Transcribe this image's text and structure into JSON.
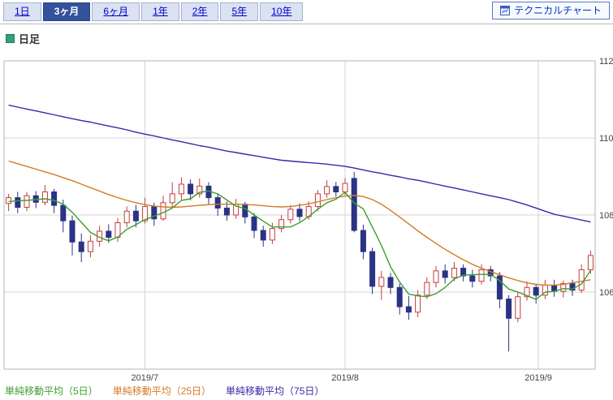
{
  "tabs": {
    "items": [
      {
        "label": "1日",
        "selected": false
      },
      {
        "label": "3ヶ月",
        "selected": true
      },
      {
        "label": "6ヶ月",
        "selected": false
      },
      {
        "label": "1年",
        "selected": false
      },
      {
        "label": "2年",
        "selected": false
      },
      {
        "label": "5年",
        "selected": false
      },
      {
        "label": "10年",
        "selected": false
      }
    ]
  },
  "technical_button": {
    "label": "テクニカルチャート"
  },
  "interval": {
    "label": "日足"
  },
  "chart_data": {
    "type": "candlestick",
    "title": "",
    "xlabel": "",
    "ylabel": "",
    "ylim": [
      104,
      112
    ],
    "y_ticks": [
      112,
      110,
      108,
      106
    ],
    "x_ticks": [
      {
        "label": "2019/7",
        "pos": 0.238
      },
      {
        "label": "2019/8",
        "pos": 0.577
      },
      {
        "label": "2019/9",
        "pos": 0.904
      }
    ],
    "grid": true,
    "legend_position": "bottom-left",
    "ohlc_order": [
      "open",
      "high",
      "low",
      "close"
    ],
    "candles": [
      [
        108.3,
        108.55,
        108.1,
        108.45
      ],
      [
        108.45,
        108.6,
        108.05,
        108.2
      ],
      [
        108.2,
        108.6,
        108.1,
        108.5
      ],
      [
        108.5,
        108.62,
        108.18,
        108.33
      ],
      [
        108.33,
        108.78,
        108.25,
        108.6
      ],
      [
        108.6,
        108.68,
        108.05,
        108.25
      ],
      [
        108.25,
        108.4,
        107.55,
        107.85
      ],
      [
        107.85,
        107.98,
        106.95,
        107.3
      ],
      [
        107.3,
        107.52,
        106.78,
        107.05
      ],
      [
        107.05,
        107.48,
        106.9,
        107.32
      ],
      [
        107.32,
        107.72,
        107.18,
        107.58
      ],
      [
        107.58,
        107.76,
        107.28,
        107.42
      ],
      [
        107.42,
        107.92,
        107.3,
        107.8
      ],
      [
        107.8,
        108.22,
        107.68,
        108.1
      ],
      [
        108.1,
        108.26,
        107.68,
        107.85
      ],
      [
        107.85,
        108.45,
        107.78,
        108.22
      ],
      [
        108.22,
        108.32,
        107.72,
        107.9
      ],
      [
        107.9,
        108.5,
        107.85,
        108.32
      ],
      [
        108.32,
        108.85,
        108.2,
        108.55
      ],
      [
        108.55,
        108.98,
        108.4,
        108.8
      ],
      [
        108.8,
        108.92,
        108.38,
        108.55
      ],
      [
        108.55,
        108.95,
        108.45,
        108.75
      ],
      [
        108.75,
        108.85,
        108.28,
        108.45
      ],
      [
        108.45,
        108.56,
        107.98,
        108.18
      ],
      [
        108.18,
        108.35,
        107.85,
        108.0
      ],
      [
        108.0,
        108.42,
        107.9,
        108.28
      ],
      [
        108.28,
        108.34,
        107.78,
        107.95
      ],
      [
        107.95,
        108.05,
        107.4,
        107.6
      ],
      [
        107.6,
        107.72,
        107.18,
        107.35
      ],
      [
        107.35,
        107.8,
        107.25,
        107.65
      ],
      [
        107.65,
        108.0,
        107.55,
        107.88
      ],
      [
        107.88,
        108.26,
        107.78,
        108.15
      ],
      [
        108.15,
        108.3,
        107.84,
        107.96
      ],
      [
        107.96,
        108.36,
        107.88,
        108.22
      ],
      [
        108.22,
        108.65,
        108.1,
        108.55
      ],
      [
        108.55,
        108.9,
        108.45,
        108.74
      ],
      [
        108.74,
        108.86,
        108.48,
        108.6
      ],
      [
        108.6,
        108.96,
        108.52,
        108.82
      ],
      [
        108.95,
        109.12,
        107.55,
        107.6
      ],
      [
        107.6,
        107.75,
        106.85,
        107.05
      ],
      [
        107.05,
        107.15,
        105.95,
        106.15
      ],
      [
        106.15,
        106.55,
        105.8,
        106.38
      ],
      [
        106.38,
        106.5,
        105.95,
        106.12
      ],
      [
        106.12,
        106.22,
        105.42,
        105.62
      ],
      [
        105.62,
        105.9,
        105.28,
        105.48
      ],
      [
        105.48,
        106.05,
        105.35,
        105.92
      ],
      [
        105.92,
        106.38,
        105.82,
        106.25
      ],
      [
        106.25,
        106.68,
        106.12,
        106.55
      ],
      [
        106.55,
        106.72,
        106.22,
        106.38
      ],
      [
        106.38,
        106.78,
        106.28,
        106.62
      ],
      [
        106.62,
        106.72,
        106.28,
        106.42
      ],
      [
        106.42,
        106.58,
        106.12,
        106.28
      ],
      [
        106.28,
        106.72,
        106.2,
        106.58
      ],
      [
        106.58,
        106.68,
        106.28,
        106.42
      ],
      [
        106.42,
        106.52,
        105.58,
        105.82
      ],
      [
        105.82,
        105.92,
        104.46,
        105.32
      ],
      [
        105.32,
        106.02,
        105.22,
        105.88
      ],
      [
        105.88,
        106.28,
        105.78,
        106.12
      ],
      [
        106.12,
        106.22,
        105.7,
        105.92
      ],
      [
        105.92,
        106.32,
        105.82,
        106.18
      ],
      [
        106.18,
        106.32,
        105.88,
        106.02
      ],
      [
        106.02,
        106.3,
        105.86,
        106.22
      ],
      [
        106.22,
        106.32,
        105.9,
        106.05
      ],
      [
        106.05,
        106.72,
        105.98,
        106.58
      ],
      [
        106.58,
        107.08,
        106.48,
        106.95
      ]
    ],
    "series": [
      {
        "name": "単純移動平均（5日）",
        "color": "#3d9e30",
        "values": [
          108.35,
          108.37,
          108.38,
          108.4,
          108.42,
          108.38,
          108.28,
          108.07,
          107.81,
          107.55,
          107.42,
          107.33,
          107.43,
          107.63,
          107.75,
          107.88,
          107.97,
          108.06,
          108.18,
          108.38,
          108.42,
          108.59,
          108.62,
          108.55,
          108.39,
          108.23,
          108.17,
          108.0,
          107.84,
          107.69,
          107.69,
          107.69,
          107.8,
          107.96,
          108.15,
          108.32,
          108.41,
          108.59,
          108.31,
          108.16,
          107.69,
          107.21,
          106.66,
          106.26,
          105.95,
          105.9,
          105.88,
          105.96,
          106.12,
          106.34,
          106.44,
          106.45,
          106.46,
          106.46,
          106.3,
          106.08,
          106.0,
          105.91,
          105.81,
          106.0,
          106.02,
          106.09,
          106.08,
          106.21,
          106.56
        ]
      },
      {
        "name": "単純移動平均（25日）",
        "color": "#d57b25",
        "values": [
          109.4,
          109.33,
          109.26,
          109.19,
          109.12,
          109.05,
          108.97,
          108.89,
          108.8,
          108.71,
          108.62,
          108.53,
          108.45,
          108.38,
          108.32,
          108.27,
          108.23,
          108.21,
          108.2,
          108.21,
          108.23,
          108.25,
          108.27,
          108.28,
          108.28,
          108.28,
          108.27,
          108.26,
          108.24,
          108.22,
          108.21,
          108.22,
          108.25,
          108.29,
          108.34,
          108.4,
          108.45,
          108.49,
          108.51,
          108.48,
          108.4,
          108.28,
          108.12,
          107.95,
          107.77,
          107.59,
          107.42,
          107.26,
          107.11,
          106.97,
          106.84,
          106.72,
          106.62,
          106.53,
          106.45,
          106.37,
          106.3,
          106.24,
          106.2,
          106.18,
          106.18,
          106.2,
          106.24,
          106.28,
          106.32
        ]
      },
      {
        "name": "単純移動平均（75日）",
        "color": "#3b28a8",
        "values": [
          110.85,
          110.8,
          110.75,
          110.7,
          110.65,
          110.6,
          110.55,
          110.5,
          110.45,
          110.41,
          110.36,
          110.31,
          110.26,
          110.21,
          110.15,
          110.1,
          110.05,
          110.0,
          109.95,
          109.9,
          109.85,
          109.8,
          109.76,
          109.71,
          109.66,
          109.62,
          109.58,
          109.54,
          109.5,
          109.46,
          109.42,
          109.4,
          109.38,
          109.36,
          109.34,
          109.32,
          109.29,
          109.26,
          109.22,
          109.17,
          109.12,
          109.08,
          109.03,
          108.99,
          108.94,
          108.9,
          108.85,
          108.8,
          108.75,
          108.7,
          108.65,
          108.6,
          108.55,
          108.5,
          108.45,
          108.4,
          108.33,
          108.26,
          108.18,
          108.1,
          108.02,
          107.97,
          107.92,
          107.87,
          107.82
        ]
      }
    ],
    "colors": {
      "up_fill": "#ffffff",
      "up_border": "#c53d3d",
      "down_fill": "#2a3384",
      "down_border": "#2a3384",
      "grid": "#d4d4d4",
      "plot_border": "#b5b5b5",
      "axis_text": "#444444"
    }
  }
}
